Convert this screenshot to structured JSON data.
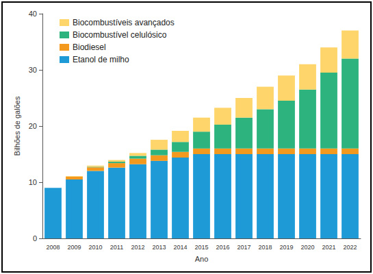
{
  "chart_data": {
    "type": "bar",
    "stacked": true,
    "grid": false,
    "legend": "top-left",
    "x_label": "Ano",
    "y_label": "Bilhões de galões",
    "categories": [
      "2008",
      "2009",
      "2010",
      "2011",
      "2012",
      "2013",
      "2014",
      "2015",
      "2016",
      "2017",
      "2018",
      "2019",
      "2020",
      "2021",
      "2022"
    ],
    "series": [
      {
        "name": "Etanol de milho",
        "color": "#1e9bd7",
        "values": [
          9.0,
          10.5,
          12.0,
          12.6,
          13.2,
          13.8,
          14.4,
          15.0,
          15.0,
          15.0,
          15.0,
          15.0,
          15.0,
          15.0,
          15.0
        ]
      },
      {
        "name": "Biodiesel",
        "color": "#f39a1e",
        "values": [
          0,
          0.5,
          0.65,
          0.8,
          1.0,
          1.0,
          1.0,
          1.0,
          1.0,
          1.0,
          1.0,
          1.0,
          1.0,
          1.0,
          1.0
        ]
      },
      {
        "name": "Biocombustível celulósico",
        "color": "#2db37e",
        "values": [
          0,
          0,
          0.1,
          0.25,
          0.5,
          1.0,
          1.75,
          3.0,
          4.25,
          5.5,
          7.0,
          8.5,
          10.5,
          13.5,
          16.0
        ]
      },
      {
        "name": "Biocombustíveis avançados",
        "color": "#fdd56a",
        "values": [
          0,
          0.1,
          0.2,
          0.3,
          0.5,
          1.75,
          2.0,
          2.5,
          3.0,
          3.5,
          4.0,
          4.5,
          4.5,
          4.5,
          5.0
        ]
      }
    ],
    "ylim": [
      0,
      40
    ],
    "yticks": [
      0,
      10,
      20,
      30,
      40
    ]
  }
}
